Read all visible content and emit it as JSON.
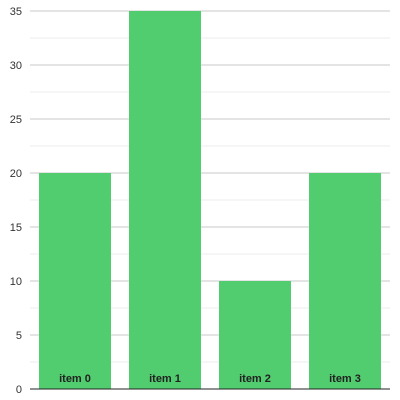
{
  "chart_data": {
    "type": "bar",
    "categories": [
      "item 0",
      "item 1",
      "item 2",
      "item 3"
    ],
    "values": [
      20,
      35,
      10,
      20
    ],
    "title": "",
    "xlabel": "",
    "ylabel": "",
    "ylim": [
      0,
      35
    ],
    "yticks": [
      0,
      5,
      10,
      15,
      20,
      25,
      30,
      35
    ],
    "grid": true,
    "legend": "none",
    "category_labels_inside_bars": true,
    "colors": {
      "bar": "#51cc6f",
      "gridline_major": "#c8c8c8",
      "gridline_minor": "#ececec",
      "axis": "#222222"
    }
  }
}
